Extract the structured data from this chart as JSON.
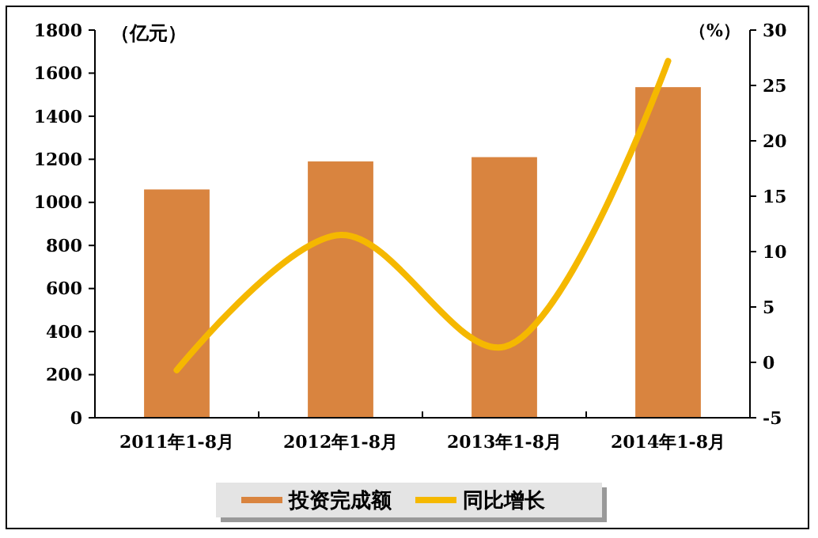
{
  "chart_data": {
    "type": "bar",
    "ylabel": "（亿元）",
    "y2label": "（%）",
    "categories": [
      "2011年1-8月",
      "2012年1-8月",
      "2013年1-8月",
      "2014年1-8月"
    ],
    "series": [
      {
        "name": "投资完成额",
        "color": "#d9843f",
        "values": [
          1060,
          1190,
          1210,
          1535
        ]
      },
      {
        "name": "同比增长",
        "type": "line",
        "axis": "y2",
        "color": "#f5b800",
        "values": [
          -0.7,
          11.5,
          1.4,
          27.2
        ]
      }
    ],
    "ylim": [
      0,
      1800
    ],
    "yticks": [
      0,
      200,
      400,
      600,
      800,
      1000,
      1200,
      1400,
      1600,
      1800
    ],
    "y2lim": [
      -5,
      30
    ],
    "y2ticks": [
      -5,
      0,
      5,
      10,
      15,
      20,
      25,
      30
    ],
    "legend": "bottom",
    "grid": false
  }
}
